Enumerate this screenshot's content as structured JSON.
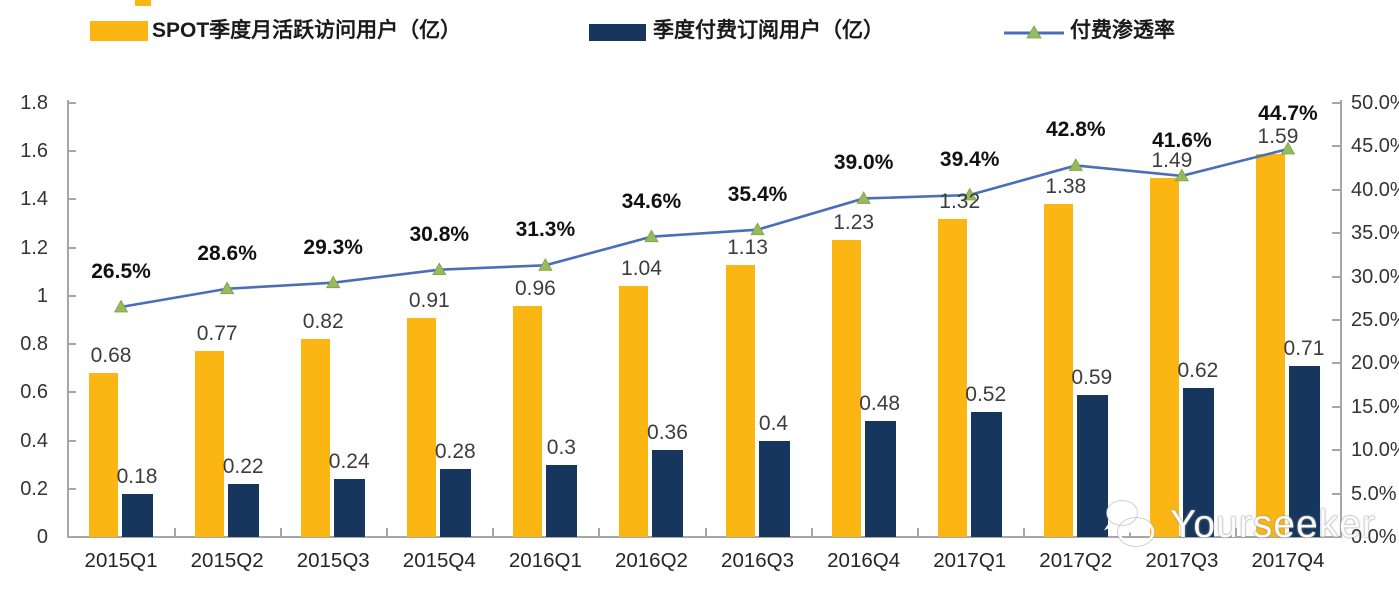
{
  "legend": [
    {
      "label": "SPOT季度月活跃访问用户（亿）",
      "color": "#FBB614",
      "type": "bar-swatch"
    },
    {
      "label": "季度付费订阅用户（亿）",
      "color": "#17365D",
      "type": "bar-swatch"
    },
    {
      "label": "付费渗透率",
      "color": "#4A6FB8",
      "marker_color": "#97BB5B",
      "type": "line-swatch"
    }
  ],
  "watermark": {
    "text": "Yourseeker",
    "icon": "wechat-icon"
  },
  "colors": {
    "mau_bar": "#FBB614",
    "subs_bar": "#17365D",
    "line": "#4A6FB8",
    "marker": "#97BB5B",
    "axis": "#a6a6a6"
  },
  "chart_data": {
    "type": "bar",
    "subtype": "grouped-bars-with-line",
    "categories": [
      "2015Q1",
      "2015Q2",
      "2015Q3",
      "2015Q4",
      "2016Q1",
      "2016Q2",
      "2016Q3",
      "2016Q4",
      "2017Q1",
      "2017Q2",
      "2017Q3",
      "2017Q4"
    ],
    "series": [
      {
        "name": "SPOT季度月活跃访问用户（亿）",
        "type": "bar",
        "axis": "left",
        "color": "#FBB614",
        "values": [
          0.68,
          0.77,
          0.82,
          0.91,
          0.96,
          1.04,
          1.13,
          1.23,
          1.32,
          1.38,
          1.49,
          1.59
        ],
        "labels": [
          "0.68",
          "0.77",
          "0.82",
          "0.91",
          "0.96",
          "1.04",
          "1.13",
          "1.23",
          "1.32",
          "1.38",
          "1.49",
          "1.59"
        ]
      },
      {
        "name": "季度付费订阅用户（亿）",
        "type": "bar",
        "axis": "left",
        "color": "#17365D",
        "values": [
          0.18,
          0.22,
          0.24,
          0.28,
          0.3,
          0.36,
          0.4,
          0.48,
          0.52,
          0.59,
          0.62,
          0.71
        ],
        "labels": [
          "0.18",
          "0.22",
          "0.24",
          "0.28",
          "0.3",
          "0.36",
          "0.4",
          "0.48",
          "0.52",
          "0.59",
          "0.62",
          "0.71"
        ]
      },
      {
        "name": "付费渗透率",
        "type": "line",
        "axis": "right",
        "color": "#4A6FB8",
        "marker": "triangle",
        "marker_color": "#97BB5B",
        "values": [
          26.5,
          28.6,
          29.3,
          30.8,
          31.3,
          34.6,
          35.4,
          39.0,
          39.4,
          42.8,
          41.6,
          44.7
        ],
        "labels": [
          "26.5%",
          "28.6%",
          "29.3%",
          "30.8%",
          "31.3%",
          "34.6%",
          "35.4%",
          "39.0%",
          "39.4%",
          "42.8%",
          "41.6%",
          "44.7%"
        ]
      }
    ],
    "left_axis": {
      "min": 0,
      "max": 1.8,
      "ticks": [
        "0",
        "0.2",
        "0.4",
        "0.6",
        "0.8",
        "1",
        "1.2",
        "1.4",
        "1.6",
        "1.8"
      ]
    },
    "right_axis": {
      "min": 0,
      "max": 50,
      "ticks": [
        "0.0%",
        "5.0%",
        "10.0%",
        "15.0%",
        "20.0%",
        "25.0%",
        "30.0%",
        "35.0%",
        "40.0%",
        "45.0%",
        "50.0%"
      ]
    },
    "grid": false,
    "legend_position": "top",
    "title": ""
  }
}
